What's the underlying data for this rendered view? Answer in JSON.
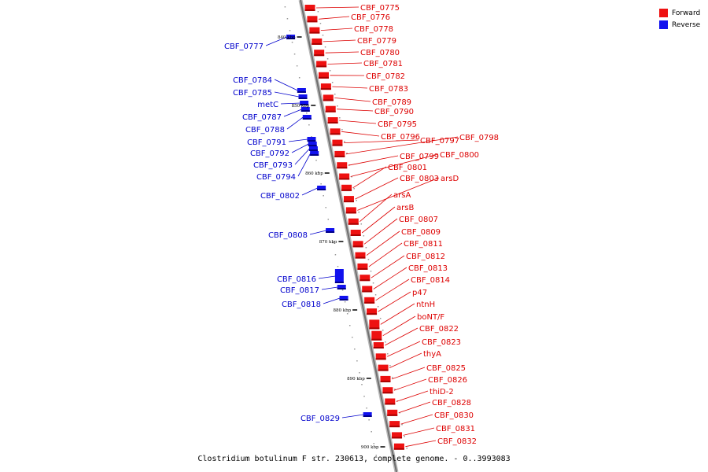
{
  "legend": {
    "forward_label": "Forward",
    "reverse_label": "Reverse",
    "forward_color": "#ee1111",
    "reverse_color": "#1111ee"
  },
  "caption": "Clostridium botulinum F str. 230613, complete genome. - 0..3993083",
  "ticks": [
    "840 kbp",
    "850 kbp",
    "860 kbp",
    "870 kbp",
    "880 kbp",
    "890 kbp",
    "900 kbp"
  ],
  "forward_genes": [
    "CBF_0775",
    "CBF_0776",
    "CBF_0778",
    "CBF_0779",
    "CBF_0780",
    "CBF_0781",
    "CBF_0782",
    "CBF_0783",
    "CBF_0789",
    "CBF_0790",
    "CBF_0795",
    "CBF_0796",
    "CBF_0797",
    "CBF_0798",
    "CBF_0799",
    "CBF_0800",
    "CBF_0801",
    "CBF_0803",
    "arsD",
    "arsA",
    "arsB",
    "CBF_0807",
    "CBF_0809",
    "CBF_0811",
    "CBF_0812",
    "CBF_0813",
    "CBF_0814",
    "p47",
    "ntnH",
    "boNT/F",
    "CBF_0822",
    "CBF_0823",
    "thyA",
    "CBF_0825",
    "CBF_0826",
    "thiD-2",
    "CBF_0828",
    "CBF_0830",
    "CBF_0831",
    "CBF_0832"
  ],
  "reverse_genes": [
    "CBF_0777",
    "CBF_0784",
    "CBF_0785",
    "metC",
    "CBF_0787",
    "CBF_0788",
    "CBF_0791",
    "CBF_0792",
    "CBF_0793",
    "CBF_0794",
    "CBF_0802",
    "CBF_0808",
    "CBF_0816",
    "CBF_0817",
    "CBF_0818",
    "CBF_0829"
  ]
}
